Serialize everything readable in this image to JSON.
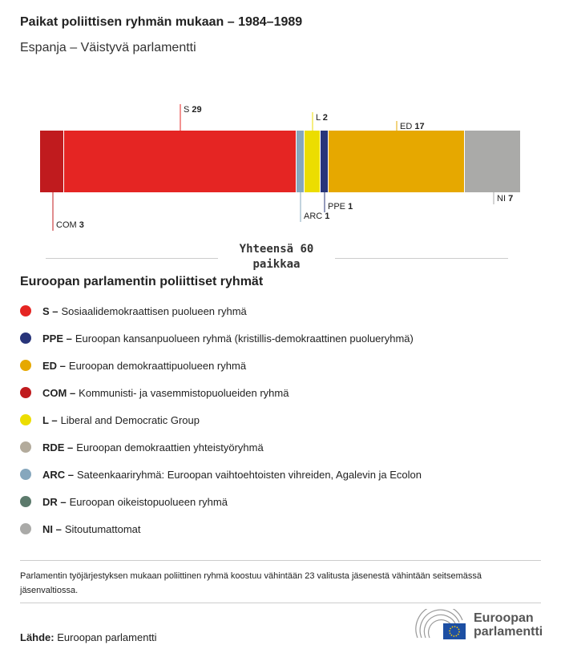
{
  "title": "Paikat poliittisen ryhmän mukaan – 1984–1989",
  "subtitle": "Espanja – Väistyvä parlamentti",
  "chart_data": {
    "type": "bar",
    "orientation": "horizontal-stacked",
    "categories": [
      "COM",
      "S",
      "ARC",
      "L",
      "PPE",
      "ED",
      "NI"
    ],
    "values": [
      3,
      29,
      1,
      2,
      1,
      17,
      7
    ],
    "colors": [
      "#c01b1e",
      "#e52523",
      "#86a7bd",
      "#ecdd00",
      "#28357a",
      "#e6a800",
      "#aaaaa8"
    ],
    "label_positions": [
      "below",
      "above",
      "below",
      "above",
      "below",
      "above",
      "below"
    ],
    "total_label": "Yhteensä 60 paikkaa"
  },
  "legend_title": "Euroopan parlamentin poliittiset ryhmät",
  "legend": [
    {
      "abbr": "S –",
      "text": "Sosiaalidemokraattisen puolueen ryhmä",
      "color": "#e52523"
    },
    {
      "abbr": "PPE –",
      "text": "Euroopan kansanpuolueen ryhmä (kristillis-demokraattinen puolueryhmä)",
      "color": "#28357a"
    },
    {
      "abbr": "ED –",
      "text": "Euroopan demokraattipuolueen ryhmä",
      "color": "#e6a800"
    },
    {
      "abbr": "COM –",
      "text": "Kommunisti- ja vasemmistopuolueiden ryhmä",
      "color": "#c01b1e"
    },
    {
      "abbr": "L –",
      "text": "Liberal and Democratic Group",
      "color": "#ecdd00"
    },
    {
      "abbr": "RDE –",
      "text": "Euroopan demokraattien yhteistyöryhmä",
      "color": "#b3ab9c"
    },
    {
      "abbr": "ARC –",
      "text": "Sateenkaariryhmä: Euroopan vaihtoehtoisten vihreiden, Agalevin ja Ecolon",
      "color": "#86a7bd"
    },
    {
      "abbr": "DR –",
      "text": "Euroopan oikeistopuolueen ryhmä",
      "color": "#5c7a6c"
    },
    {
      "abbr": "NI –",
      "text": "Sitoutumattomat",
      "color": "#aaaaa8"
    }
  ],
  "note": "Parlamentin työjärjestyksen mukaan poliittinen ryhmä koostuu vähintään 23 valitusta jäsenestä vähintään seitsemässä jäsenvaltiossa.",
  "source_label": "Lähde:",
  "source": "Euroopan parlamentti",
  "logo": {
    "line1": "Euroopan",
    "line2": "parlamentti"
  }
}
